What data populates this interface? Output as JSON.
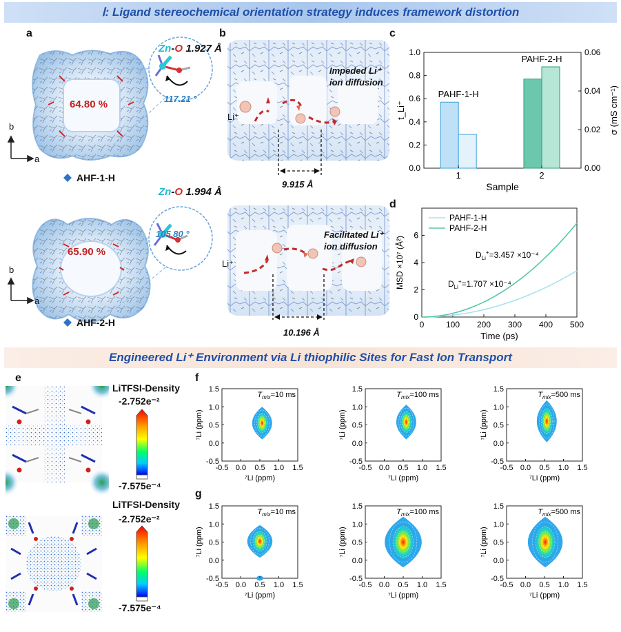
{
  "banners": {
    "top": "Ⅰ: Ligand stereochemical orientation strategy induces framework distortion",
    "bottom": "Engineered Li⁺ Environment via Li thiophilic Sites for Fast Ion Transport"
  },
  "panel_labels": {
    "a": "a",
    "b": "b",
    "c": "c",
    "d": "d",
    "e": "e",
    "f": "f",
    "g": "g"
  },
  "panel_a": {
    "top": {
      "sample": "AHF-1-H",
      "porosity": "64.80 %",
      "bond_prefix": "Zn",
      "bond_atom": "O",
      "bond_length": "1.927 Å",
      "angle": "117.21 °"
    },
    "bottom": {
      "sample": "AHF-2-H",
      "porosity": "65.90 %",
      "bond_prefix": "Zn",
      "bond_atom": "O",
      "bond_length": "1.994 Å",
      "angle": "105.80 °"
    },
    "axis_b": "b",
    "axis_a": "a"
  },
  "panel_b": {
    "top": {
      "annotation_line1": "Impeded Li⁺",
      "annotation_line2": "ion diffusion",
      "ion": "Li⁺",
      "distance": "9.915 Å"
    },
    "bottom": {
      "annotation_line1": "Facilitated Li⁺",
      "annotation_line2": "ion  diffusion",
      "ion": "Li⁺",
      "distance": "10.196 Å"
    }
  },
  "panel_e": {
    "colorbar_title": "LiTFSI-Density",
    "max": "-2.752e⁻²",
    "min": "-7.575e⁻⁴",
    "colors": [
      "#ff0000",
      "#ff9900",
      "#ffff00",
      "#00ff66",
      "#00ccff",
      "#0000ff"
    ]
  },
  "chart_data": [
    {
      "id": "c",
      "type": "bar",
      "xlabel": "Sample",
      "ylabel": "t_Li⁺",
      "y2label": "σ (mS cm⁻¹)",
      "categories": [
        "1",
        "2"
      ],
      "ylim": [
        0,
        1.0
      ],
      "y2lim": [
        0,
        0.06
      ],
      "yticks": [
        "0.0",
        "0.2",
        "0.4",
        "0.6",
        "0.8",
        "1.0"
      ],
      "y2ticks": [
        "0.00",
        "0.02",
        "0.04",
        "0.06"
      ],
      "labels": [
        "PAHF-1-H",
        "PAHF-2-H"
      ],
      "series": [
        {
          "axis": "left",
          "values": [
            0.57,
            0.77
          ],
          "colors": [
            "#bfe1f7",
            "#6cc8ad"
          ]
        },
        {
          "axis": "right",
          "values": [
            0.0175,
            0.0525
          ],
          "colors": [
            "#e3f2fb",
            "#b6e6d6"
          ]
        }
      ]
    },
    {
      "id": "d",
      "type": "line",
      "xlabel": "Time (ps)",
      "ylabel": "MSD ×10⁷ (Å²)",
      "xlim": [
        0,
        500
      ],
      "ylim": [
        0,
        8
      ],
      "xticks": [
        "0",
        "100",
        "200",
        "300",
        "400",
        "500"
      ],
      "yticks": [
        "0",
        "2",
        "4",
        "6"
      ],
      "series": [
        {
          "name": "PAHF-1-H",
          "color": "#a8e2ee",
          "x": [
            0,
            100,
            200,
            300,
            400,
            500
          ],
          "y": [
            0,
            0.14,
            0.54,
            1.22,
            2.18,
            3.4
          ]
        },
        {
          "name": "PAHF-2-H",
          "color": "#55c7a8",
          "x": [
            0,
            100,
            200,
            300,
            400,
            500
          ],
          "y": [
            0,
            0.28,
            1.1,
            2.48,
            4.4,
            6.9
          ]
        }
      ],
      "annotations": [
        {
          "label_main": "D",
          "label_sub": "Li",
          "label_sup": "+",
          "label_rest": "=3.457 ×10⁻⁴"
        },
        {
          "label_main": "D",
          "label_sub": "Li",
          "label_sup": "+",
          "label_rest": "=1.707 ×10⁻⁴"
        }
      ]
    },
    {
      "id": "fg",
      "type": "heatmap",
      "xlabel": "⁷Li (ppm)",
      "ylabel": "⁷Li (ppm)",
      "xlim": [
        -0.5,
        1.5
      ],
      "ylim": [
        -0.5,
        1.5
      ],
      "xticks": [
        "-0.5",
        "0.0",
        "0.5",
        "1.0",
        "1.5"
      ],
      "yticks": [
        "-0.5",
        "0.0",
        "0.5",
        "1.0",
        "1.5"
      ],
      "tmix_label": "T",
      "tmix_sub": "mix",
      "panels": [
        {
          "row": "f",
          "tmix": "=10 ms",
          "center": [
            0.56,
            0.55
          ],
          "half_width": 0.27,
          "half_height": 0.45,
          "extra_peak": null
        },
        {
          "row": "f",
          "tmix": "=100 ms",
          "center": [
            0.58,
            0.58
          ],
          "half_width": 0.27,
          "half_height": 0.48,
          "extra_peak": null
        },
        {
          "row": "f",
          "tmix": "=500 ms",
          "center": [
            0.56,
            0.6
          ],
          "half_width": 0.27,
          "half_height": 0.58,
          "extra_peak": null
        },
        {
          "row": "g",
          "tmix": "=10 ms",
          "center": [
            0.5,
            0.52
          ],
          "half_width": 0.34,
          "half_height": 0.45,
          "extra_peak": [
            0.5,
            -0.5
          ]
        },
        {
          "row": "g",
          "tmix": "=100 ms",
          "center": [
            0.5,
            0.5
          ],
          "half_width": 0.5,
          "half_height": 0.7,
          "extra_peak": null
        },
        {
          "row": "g",
          "tmix": "=500 ms",
          "center": [
            0.52,
            0.5
          ],
          "half_width": 0.47,
          "half_height": 0.7,
          "extra_peak": null
        }
      ]
    }
  ]
}
